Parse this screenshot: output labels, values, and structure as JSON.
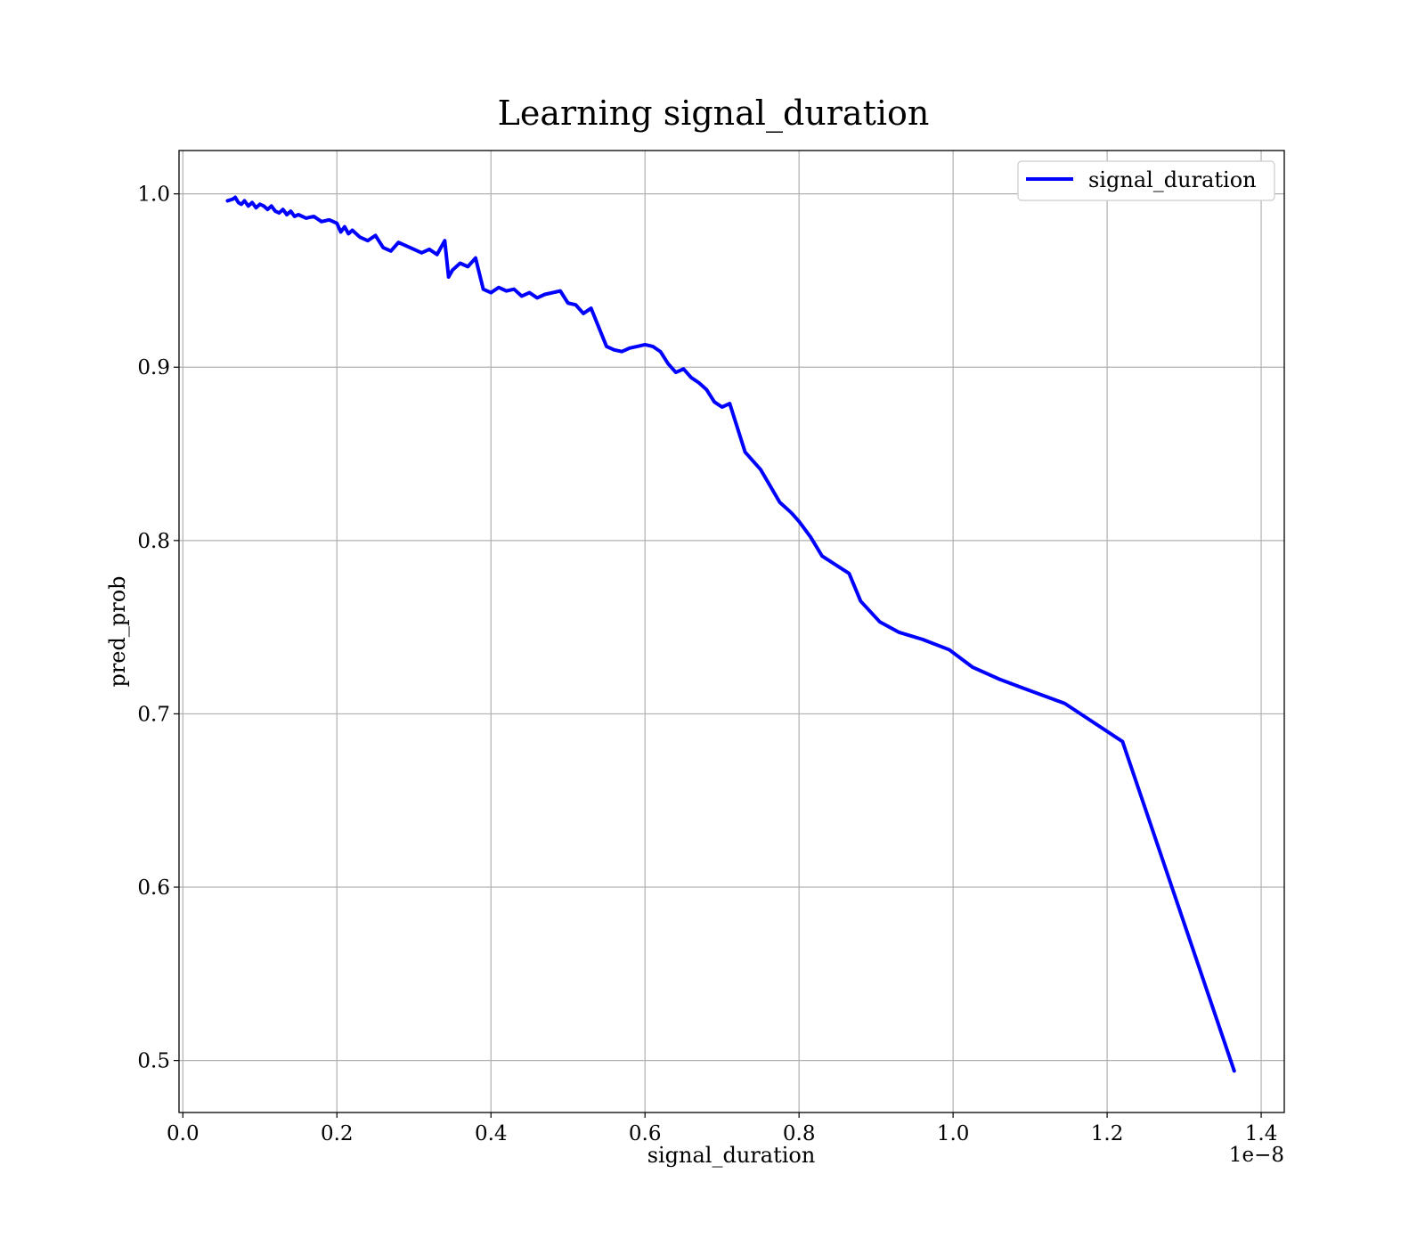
{
  "chart_data": {
    "type": "line",
    "title": "Learning signal_duration",
    "xlabel": "signal_duration",
    "ylabel": "pred_prob",
    "x_offset_label": "1e−8",
    "xlim": [
      -0.005,
      1.43
    ],
    "ylim": [
      0.47,
      1.025
    ],
    "x_ticks": [
      0.0,
      0.2,
      0.4,
      0.6,
      0.8,
      1.0,
      1.2,
      1.4
    ],
    "x_tick_labels": [
      "0.0",
      "0.2",
      "0.4",
      "0.6",
      "0.8",
      "1.0",
      "1.2",
      "1.4"
    ],
    "y_ticks": [
      0.5,
      0.6,
      0.7,
      0.8,
      0.9,
      1.0
    ],
    "y_tick_labels": [
      "0.5",
      "0.6",
      "0.7",
      "0.8",
      "0.9",
      "1.0"
    ],
    "grid": true,
    "legend_position": "top-right",
    "series": [
      {
        "name": "signal_duration",
        "color": "#0000ff",
        "x": [
          0.058,
          0.065,
          0.068,
          0.072,
          0.076,
          0.08,
          0.085,
          0.09,
          0.095,
          0.1,
          0.105,
          0.11,
          0.115,
          0.12,
          0.125,
          0.13,
          0.135,
          0.14,
          0.145,
          0.15,
          0.16,
          0.17,
          0.18,
          0.19,
          0.2,
          0.205,
          0.21,
          0.215,
          0.22,
          0.23,
          0.24,
          0.25,
          0.26,
          0.27,
          0.28,
          0.29,
          0.3,
          0.31,
          0.32,
          0.33,
          0.34,
          0.345,
          0.35,
          0.36,
          0.37,
          0.38,
          0.39,
          0.4,
          0.41,
          0.42,
          0.43,
          0.44,
          0.45,
          0.46,
          0.47,
          0.48,
          0.49,
          0.5,
          0.51,
          0.52,
          0.53,
          0.54,
          0.55,
          0.56,
          0.57,
          0.58,
          0.59,
          0.6,
          0.61,
          0.62,
          0.63,
          0.64,
          0.65,
          0.66,
          0.67,
          0.68,
          0.69,
          0.7,
          0.71,
          0.73,
          0.75,
          0.775,
          0.79,
          0.8,
          0.815,
          0.83,
          0.865,
          0.88,
          0.905,
          0.93,
          0.96,
          0.995,
          1.025,
          1.06,
          1.09,
          1.145,
          1.22,
          1.365
        ],
        "values": [
          0.996,
          0.997,
          0.998,
          0.995,
          0.994,
          0.996,
          0.993,
          0.995,
          0.992,
          0.994,
          0.993,
          0.991,
          0.993,
          0.99,
          0.989,
          0.991,
          0.988,
          0.99,
          0.987,
          0.988,
          0.986,
          0.987,
          0.984,
          0.985,
          0.983,
          0.978,
          0.981,
          0.977,
          0.979,
          0.975,
          0.973,
          0.976,
          0.969,
          0.967,
          0.972,
          0.97,
          0.968,
          0.966,
          0.968,
          0.965,
          0.973,
          0.952,
          0.956,
          0.96,
          0.958,
          0.963,
          0.945,
          0.943,
          0.946,
          0.944,
          0.945,
          0.941,
          0.943,
          0.94,
          0.942,
          0.943,
          0.944,
          0.937,
          0.936,
          0.931,
          0.934,
          0.923,
          0.912,
          0.91,
          0.909,
          0.911,
          0.912,
          0.913,
          0.912,
          0.909,
          0.902,
          0.897,
          0.899,
          0.894,
          0.891,
          0.887,
          0.88,
          0.877,
          0.879,
          0.851,
          0.841,
          0.822,
          0.816,
          0.811,
          0.802,
          0.791,
          0.781,
          0.765,
          0.753,
          0.747,
          0.743,
          0.737,
          0.727,
          0.72,
          0.715,
          0.706,
          0.684,
          0.494
        ]
      }
    ]
  }
}
